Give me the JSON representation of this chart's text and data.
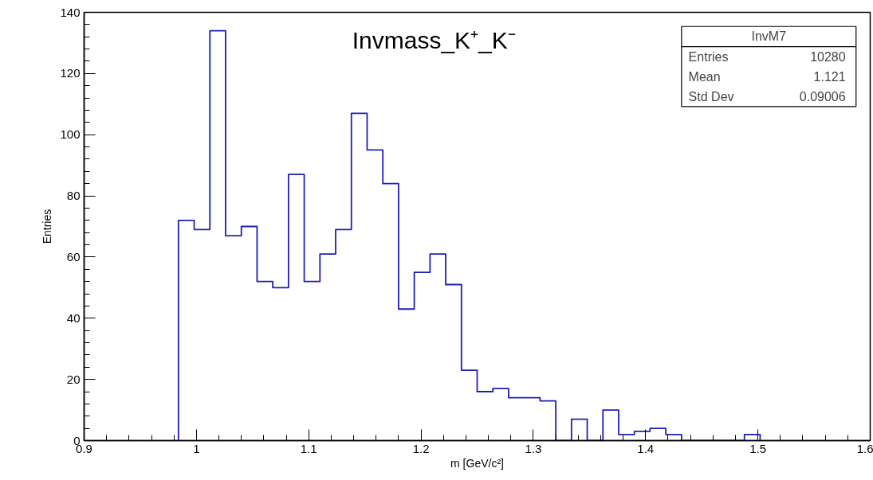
{
  "chart_data": {
    "type": "histogram",
    "title": "Invmass_K⁺_K⁻",
    "xlabel": "m [GeV/c²]",
    "ylabel": "Entries",
    "bins": [
      0.984,
      0.998,
      1.012,
      1.026,
      1.04,
      1.054,
      1.068,
      1.082,
      1.096,
      1.11,
      1.124,
      1.138,
      1.152,
      1.166,
      1.18,
      1.194,
      1.208,
      1.222,
      1.236,
      1.25,
      1.264,
      1.278,
      1.292,
      1.306,
      1.32,
      1.334,
      1.348,
      1.362,
      1.376,
      1.39,
      1.404,
      1.418,
      1.432,
      1.446,
      1.46,
      1.474,
      1.488,
      1.502
    ],
    "values": [
      72,
      69,
      134,
      67,
      70,
      52,
      50,
      87,
      52,
      61,
      69,
      107,
      95,
      84,
      43,
      55,
      61,
      51,
      23,
      16,
      17,
      14,
      14,
      13,
      0,
      7,
      0,
      10,
      2,
      3,
      4,
      2,
      0,
      0,
      0,
      0,
      2
    ],
    "color": "#1f1fb4",
    "xlim": [
      0.9,
      1.6
    ],
    "xticks": [
      0.9,
      1,
      1.1,
      1.2,
      1.3,
      1.4,
      1.5,
      1.6
    ],
    "ylim": [
      0,
      140
    ],
    "yticks": [
      0,
      20,
      40,
      60,
      80,
      100,
      120,
      140
    ],
    "grid": false,
    "annotations": [
      "InvM7",
      "Entries",
      "10280",
      "Mean",
      "1.121",
      "Std Dev",
      "0.09006"
    ]
  }
}
